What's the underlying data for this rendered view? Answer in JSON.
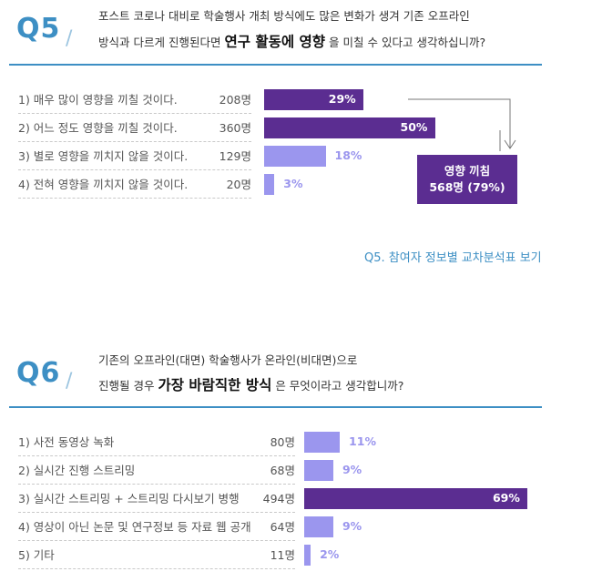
{
  "chart_data": [
    {
      "type": "bar",
      "question_number": "Q5",
      "question_line1": "포스트 코로나 대비로 학술행사 개최 방식에도 많은 변화가 생겨 기존 오프라인",
      "question_line2_pre": "방식과 다르게 진행된다면",
      "question_line2_emph": "연구 활동에 영향",
      "question_line2_post": "을 미칠 수 있다고 생각하십니까?",
      "categories": [
        "1)  매우 많이 영향을 끼칠 것이다.",
        "2)  어느 정도 영향을 끼칠 것이다.",
        "3)  별로 영향을 끼치지 않을 것이다.",
        "4)  전혀 영향을 끼치지 않을 것이다."
      ],
      "counts": [
        "208명",
        "360명",
        "129명",
        "20명"
      ],
      "values": [
        29,
        50,
        18,
        3
      ],
      "value_labels": [
        "29%",
        "50%",
        "18%",
        "3%"
      ],
      "bar_colors": [
        "#5b2d91",
        "#5b2d91",
        "#9b96ee",
        "#9b96ee"
      ],
      "callout_line1": "영향 끼침",
      "callout_line2": "568명 (79%)",
      "link": "Q5. 참여자 정보별 교차분석표 보기"
    },
    {
      "type": "bar",
      "question_number": "Q6",
      "question_line1": "기존의 오프라인(대면) 학술행사가  온라인(비대면)으로",
      "question_line2_pre": "진행될 경우",
      "question_line2_emph": "가장 바람직한 방식",
      "question_line2_post": "은 무엇이라고 생각합니까?",
      "categories": [
        "1)  사전 동영상 녹화",
        "2)  실시간 진행 스트리밍",
        "3)  실시간 스트리밍 + 스트리밍 다시보기 병행",
        "4)  영상이 아닌 논문 및 연구정보 등 자료 웹 공개",
        "5)  기타"
      ],
      "counts": [
        "80명",
        "68명",
        "494명",
        "64명",
        "11명"
      ],
      "values": [
        11,
        9,
        69,
        9,
        2
      ],
      "value_labels": [
        "11%",
        "9%",
        "69%",
        "9%",
        "2%"
      ],
      "bar_colors": [
        "#9b96ee",
        "#9b96ee",
        "#5b2d91",
        "#9b96ee",
        "#9b96ee"
      ]
    }
  ],
  "colors": {
    "accent": "#3d8fc4",
    "dark_bar": "#5b2d91",
    "light_bar": "#9b96ee"
  }
}
